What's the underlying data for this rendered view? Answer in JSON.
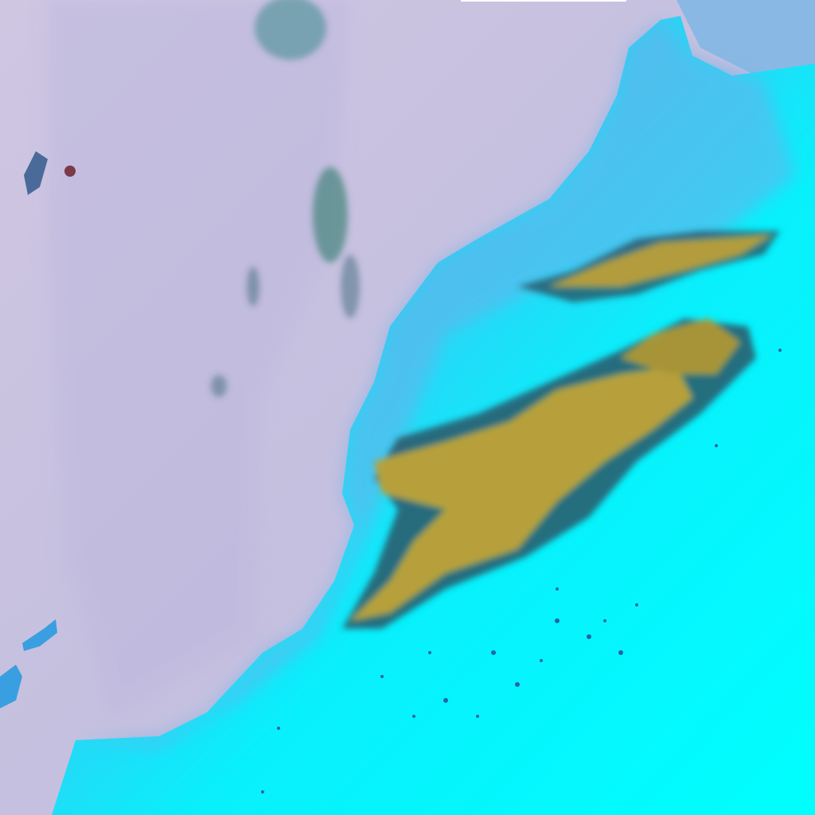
{
  "image": {
    "kind": "false-color satellite image",
    "colors": {
      "ocean": "#c6c1e0",
      "ocean_shelf": "#b7b6dc",
      "coastal_land": "#6fb2e8",
      "inland": "#2fd6f4",
      "desert": "#00ffff",
      "mountains": "#b9a23a",
      "mountain_shadow": "#1c3a5a",
      "scattered_dots": "#2a2a88",
      "islands": "#3a9fe0"
    },
    "features": [
      "ocean",
      "coastline",
      "mountain-range",
      "islands",
      "cloud-streaks"
    ]
  }
}
